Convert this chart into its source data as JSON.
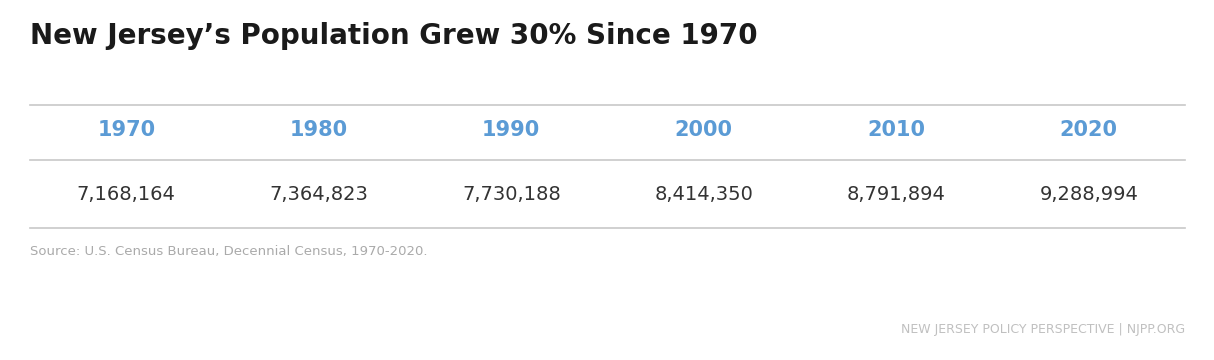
{
  "title": "New Jersey’s Population Grew 30% Since 1970",
  "years": [
    "1970",
    "1980",
    "1990",
    "2000",
    "2010",
    "2020"
  ],
  "populations": [
    "7,168,164",
    "7,364,823",
    "7,730,188",
    "8,414,350",
    "8,791,894",
    "9,288,994"
  ],
  "header_color": "#5b9bd5",
  "value_color": "#333333",
  "title_color": "#1a1a1a",
  "source_text": "Source: U.S. Census Bureau, Decennial Census, 1970-2020.",
  "source_color": "#aaaaaa",
  "watermark_text": "NEW JERSEY POLICY PERSPECTIVE | NJPP.ORG",
  "watermark_color": "#c0c0c0",
  "background_color": "#ffffff",
  "line_color": "#c8c8c8",
  "title_fontsize": 20,
  "header_fontsize": 15,
  "value_fontsize": 14,
  "source_fontsize": 9.5,
  "watermark_fontsize": 9
}
